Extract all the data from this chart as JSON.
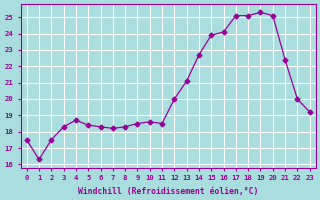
{
  "x": [
    0,
    1,
    2,
    3,
    4,
    5,
    6,
    7,
    8,
    9,
    10,
    11,
    12,
    13,
    14,
    15,
    16,
    17,
    18,
    19,
    20,
    21,
    22,
    23
  ],
  "y": [
    17.5,
    16.3,
    17.5,
    18.3,
    18.7,
    18.4,
    18.3,
    18.2,
    18.3,
    18.5,
    18.6,
    18.5,
    20.0,
    21.1,
    22.7,
    23.9,
    24.1,
    25.1,
    25.1,
    25.3,
    25.1,
    22.4,
    20.0,
    19.2
  ],
  "line_color": "#990099",
  "marker": "D",
  "marker_size": 2.5,
  "bg_color": "#aadddd",
  "grid_color": "#ffffff",
  "xlabel": "Windchill (Refroidissement éolien,°C)",
  "ylabel_ticks": [
    16,
    17,
    18,
    19,
    20,
    21,
    22,
    23,
    24,
    25
  ],
  "xlim": [
    -0.5,
    23.5
  ],
  "ylim": [
    15.8,
    25.8
  ],
  "label_color": "#990099",
  "tick_color": "#990099",
  "font_name": "monospace"
}
